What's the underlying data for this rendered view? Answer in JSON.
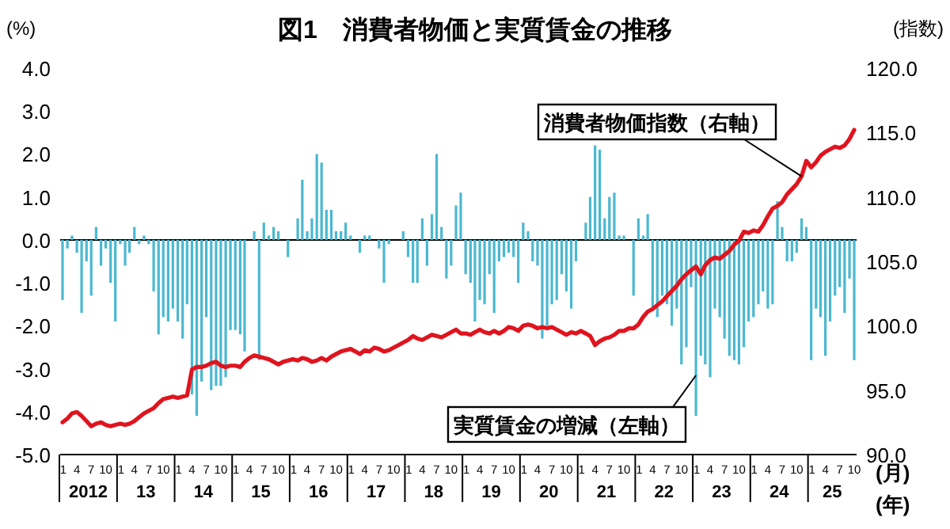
{
  "chart_data": {
    "type": "bar",
    "title": "図1　消費者物価と実質賃金の推移",
    "ylabel": "(%)",
    "y2label": "(指数)",
    "xlabel": "(月)",
    "x": [
      "2012-01",
      "2012-02",
      "2012-03",
      "2012-04",
      "2012-05",
      "2012-06",
      "2012-07",
      "2012-08",
      "2012-09",
      "2012-10",
      "2012-11",
      "2012-12",
      "2013-01",
      "2013-02",
      "2013-03",
      "2013-04",
      "2013-05",
      "2013-06",
      "2013-07",
      "2013-08",
      "2013-09",
      "2013-10",
      "2013-11",
      "2013-12",
      "2014-01",
      "2014-02",
      "2014-03",
      "2014-04",
      "2014-05",
      "2014-06",
      "2014-07",
      "2014-08",
      "2014-09",
      "2014-10",
      "2014-11",
      "2014-12",
      "2015-01",
      "2015-02",
      "2015-03",
      "2015-04",
      "2015-05",
      "2015-06",
      "2015-07",
      "2015-08",
      "2015-09",
      "2015-10",
      "2015-11",
      "2015-12",
      "2016-01",
      "2016-02",
      "2016-03",
      "2016-04",
      "2016-05",
      "2016-06",
      "2016-07",
      "2016-08",
      "2016-09",
      "2016-10",
      "2016-11",
      "2016-12",
      "2017-01",
      "2017-02",
      "2017-03",
      "2017-04",
      "2017-05",
      "2017-06",
      "2017-07",
      "2017-08",
      "2017-09",
      "2017-10",
      "2017-11",
      "2017-12",
      "2018-01",
      "2018-02",
      "2018-03",
      "2018-04",
      "2018-05",
      "2018-06",
      "2018-07",
      "2018-08",
      "2018-09",
      "2018-10",
      "2018-11",
      "2018-12",
      "2019-01",
      "2019-02",
      "2019-03",
      "2019-04",
      "2019-05",
      "2019-06",
      "2019-07",
      "2019-08",
      "2019-09",
      "2019-10",
      "2019-11",
      "2019-12",
      "2020-01",
      "2020-02",
      "2020-03",
      "2020-04",
      "2020-05",
      "2020-06",
      "2020-07",
      "2020-08",
      "2020-09",
      "2020-10",
      "2020-11",
      "2020-12",
      "2021-01",
      "2021-02",
      "2021-03",
      "2021-04",
      "2021-05",
      "2021-06",
      "2021-07",
      "2021-08",
      "2021-09",
      "2021-10",
      "2021-11",
      "2021-12",
      "2022-01",
      "2022-02",
      "2022-03",
      "2022-04",
      "2022-05",
      "2022-06",
      "2022-07",
      "2022-08",
      "2022-09",
      "2022-10",
      "2022-11",
      "2022-12",
      "2023-01",
      "2023-02",
      "2023-03",
      "2023-04",
      "2023-05",
      "2023-06",
      "2023-07",
      "2023-08",
      "2023-09",
      "2023-10",
      "2023-11",
      "2023-12",
      "2024-01",
      "2024-02",
      "2024-03",
      "2024-04",
      "2024-05",
      "2024-06",
      "2024-07",
      "2024-08",
      "2024-09",
      "2024-10",
      "2024-11",
      "2024-12",
      "2025-01",
      "2025-02",
      "2025-03",
      "2025-04",
      "2025-05",
      "2025-06",
      "2025-07",
      "2025-08",
      "2025-09",
      "2025-10"
    ],
    "xlim": [
      "2011-12-17",
      "2025-10-16"
    ],
    "xticks": [
      {
        "value": "2012-01",
        "label": "1"
      },
      {
        "value": "2012-04",
        "label": "4"
      },
      {
        "value": "2012-07",
        "label": "7"
      },
      {
        "value": "2012-10",
        "label": "10"
      },
      {
        "value": "2013-01",
        "label": "1"
      },
      {
        "value": "2013-04",
        "label": "4"
      },
      {
        "value": "2013-07",
        "label": "7"
      },
      {
        "value": "2013-10",
        "label": "10"
      },
      {
        "value": "2014-01",
        "label": "1"
      },
      {
        "value": "2014-04",
        "label": "4"
      },
      {
        "value": "2014-07",
        "label": "7"
      },
      {
        "value": "2014-10",
        "label": "10"
      },
      {
        "value": "2015-01",
        "label": "1"
      },
      {
        "value": "2015-04",
        "label": "4"
      },
      {
        "value": "2015-07",
        "label": "7"
      },
      {
        "value": "2015-10",
        "label": "10"
      },
      {
        "value": "2016-01",
        "label": "1"
      },
      {
        "value": "2016-04",
        "label": "4"
      },
      {
        "value": "2016-07",
        "label": "7"
      },
      {
        "value": "2016-10",
        "label": "10"
      },
      {
        "value": "2017-01",
        "label": "1"
      },
      {
        "value": "2017-04",
        "label": "4"
      },
      {
        "value": "2017-07",
        "label": "7"
      },
      {
        "value": "2017-10",
        "label": "10"
      },
      {
        "value": "2018-01",
        "label": "1"
      },
      {
        "value": "2018-04",
        "label": "4"
      },
      {
        "value": "2018-07",
        "label": "7"
      },
      {
        "value": "2018-10",
        "label": "10"
      },
      {
        "value": "2019-01",
        "label": "1"
      },
      {
        "value": "2019-04",
        "label": "4"
      },
      {
        "value": "2019-07",
        "label": "7"
      },
      {
        "value": "2019-10",
        "label": "10"
      },
      {
        "value": "2020-01",
        "label": "1"
      },
      {
        "value": "2020-04",
        "label": "4"
      },
      {
        "value": "2020-07",
        "label": "7"
      },
      {
        "value": "2020-10",
        "label": "10"
      },
      {
        "value": "2021-01",
        "label": "1"
      },
      {
        "value": "2021-04",
        "label": "4"
      },
      {
        "value": "2021-07",
        "label": "7"
      },
      {
        "value": "2021-10",
        "label": "10"
      },
      {
        "value": "2022-01",
        "label": "1"
      },
      {
        "value": "2022-04",
        "label": "4"
      },
      {
        "value": "2022-07",
        "label": "7"
      },
      {
        "value": "2022-10",
        "label": "10"
      },
      {
        "value": "2023-01",
        "label": "1"
      },
      {
        "value": "2023-04",
        "label": "4"
      },
      {
        "value": "2023-07",
        "label": "7"
      },
      {
        "value": "2023-10",
        "label": "10"
      },
      {
        "value": "2024-01",
        "label": "1"
      },
      {
        "value": "2024-04",
        "label": "4"
      },
      {
        "value": "2024-07",
        "label": "7"
      },
      {
        "value": "2024-10",
        "label": "10"
      },
      {
        "value": "2025-01",
        "label": "1"
      },
      {
        "value": "2025-04",
        "label": "4"
      },
      {
        "value": "2025-07",
        "label": "7"
      },
      {
        "value": "2025-10",
        "label": "10"
      }
    ],
    "ylim": [
      -5,
      4
    ],
    "yticks": [
      {
        "value": 4,
        "label": "4.0"
      },
      {
        "value": 3,
        "label": "3.0"
      },
      {
        "value": 2,
        "label": "2.0"
      },
      {
        "value": 1,
        "label": "1.0"
      },
      {
        "value": 0,
        "label": "0.0"
      },
      {
        "value": -1,
        "label": "-1.0"
      },
      {
        "value": -2,
        "label": "-2.0"
      },
      {
        "value": -3,
        "label": "-3.0"
      },
      {
        "value": -4,
        "label": "-4.0"
      },
      {
        "value": -5,
        "label": "-5.0"
      }
    ],
    "y2lim": [
      90,
      120
    ],
    "y2ticks": [
      {
        "value": 120,
        "label": "120.0"
      },
      {
        "value": 115,
        "label": "115.0"
      },
      {
        "value": 110,
        "label": "110.0"
      },
      {
        "value": 105,
        "label": "105.0"
      },
      {
        "value": 100,
        "label": "100.0"
      },
      {
        "value": 95,
        "label": "95.0"
      },
      {
        "value": 90,
        "label": "90.0"
      }
    ],
    "ref_lines": [
      {
        "axis": "y",
        "value": 0,
        "color": "#000000"
      }
    ],
    "annotations": [
      "2012",
      "13",
      "14",
      "15",
      "16",
      "17",
      "18",
      "19",
      "20",
      "21",
      "22",
      "23",
      "24",
      "25",
      "(年)"
    ],
    "series": [
      {
        "name": "実質賃金の増減（左軸）",
        "color": "#4ab8d0",
        "values": [
          -1.4,
          -0.2,
          0.1,
          -0.3,
          -1.7,
          -0.5,
          -1.3,
          0.3,
          -0.6,
          -0.2,
          -1.0,
          -1.9,
          -0.1,
          -0.6,
          -0.3,
          0.3,
          -0.1,
          0.1,
          -0.1,
          -1.2,
          -2.2,
          -1.8,
          -1.9,
          -1.6,
          -1.9,
          -2.3,
          -1.5,
          -3.6,
          -4.1,
          -3.3,
          -1.8,
          -3.5,
          -3.4,
          -3.4,
          -3.2,
          -2.1,
          -2.1,
          -2.2,
          -2.6,
          0.0,
          0.2,
          -2.8,
          0.4,
          0.1,
          0.3,
          0.2,
          0.0,
          -0.4,
          0.0,
          0.5,
          1.4,
          0.2,
          0.5,
          2.0,
          1.8,
          0.7,
          0.7,
          0.2,
          0.2,
          0.4,
          0.1,
          0.0,
          -0.3,
          0.1,
          0.1,
          0.0,
          -0.2,
          -1.0,
          -0.1,
          0.0,
          0.0,
          0.2,
          -0.4,
          -1.0,
          -1.0,
          0.5,
          -0.6,
          0.6,
          2.0,
          0.3,
          -0.9,
          -0.6,
          0.8,
          1.1,
          -0.8,
          -1.0,
          -1.9,
          -1.4,
          -1.5,
          -0.8,
          -1.7,
          -0.5,
          -0.4,
          -0.3,
          -0.4,
          -1.0,
          0.4,
          0.2,
          -0.5,
          -0.6,
          -2.3,
          -2.0,
          -1.5,
          -1.4,
          -0.8,
          -1.2,
          -1.6,
          -0.5,
          0.0,
          0.4,
          1.0,
          2.2,
          2.1,
          0.5,
          1.0,
          1.1,
          0.1,
          0.1,
          0.0,
          -1.3,
          0.5,
          0.1,
          0.6,
          -1.6,
          -1.8,
          -1.3,
          -1.5,
          -2.0,
          -1.6,
          -2.9,
          -2.5,
          -1.1,
          -4.1,
          -2.7,
          -2.9,
          -3.2,
          -1.6,
          -1.8,
          -2.3,
          -2.7,
          -2.8,
          -2.9,
          -2.5,
          -1.9,
          -1.8,
          -1.5,
          -1.2,
          -1.6,
          -1.5,
          0.9,
          0.3,
          -0.5,
          -0.5,
          -0.3,
          0.5,
          0.3,
          -2.8,
          -1.6,
          -1.8,
          -2.7,
          -1.9,
          -1.3,
          -1.1,
          -1.7,
          -0.9,
          -2.8
        ]
      },
      {
        "name": "消費者物価指数（右軸）",
        "type": "line",
        "axis": "y2",
        "color": "#e0141e",
        "line_style": "solid",
        "values": [
          92.5,
          92.8,
          93.2,
          93.3,
          93.0,
          92.6,
          92.2,
          92.4,
          92.5,
          92.3,
          92.2,
          92.3,
          92.4,
          92.3,
          92.4,
          92.6,
          92.9,
          93.2,
          93.4,
          93.6,
          94.0,
          94.3,
          94.4,
          94.5,
          94.4,
          94.5,
          94.6,
          96.6,
          96.8,
          96.8,
          96.9,
          97.1,
          97.2,
          96.9,
          96.8,
          96.9,
          96.9,
          96.8,
          97.2,
          97.5,
          97.7,
          97.6,
          97.5,
          97.4,
          97.2,
          97.0,
          97.2,
          97.3,
          97.4,
          97.3,
          97.5,
          97.4,
          97.2,
          97.3,
          97.5,
          97.3,
          97.6,
          97.8,
          98.0,
          98.1,
          98.2,
          98.0,
          97.8,
          98.1,
          98.0,
          98.3,
          98.2,
          98.0,
          98.1,
          98.3,
          98.5,
          98.7,
          98.9,
          99.2,
          99.0,
          98.9,
          99.1,
          99.3,
          99.2,
          99.1,
          99.3,
          99.5,
          99.7,
          99.4,
          99.4,
          99.3,
          99.5,
          99.7,
          99.5,
          99.4,
          99.6,
          99.4,
          99.6,
          99.9,
          99.8,
          99.6,
          100.0,
          100.1,
          100.0,
          99.8,
          99.9,
          99.8,
          99.9,
          99.7,
          99.5,
          99.3,
          99.5,
          99.4,
          99.6,
          99.4,
          99.2,
          98.5,
          98.8,
          99.0,
          99.1,
          99.3,
          99.6,
          99.6,
          99.8,
          99.8,
          100.1,
          100.7,
          101.1,
          101.3,
          101.6,
          101.9,
          102.3,
          102.7,
          103.1,
          103.6,
          104.0,
          104.3,
          104.6,
          104.0,
          104.7,
          105.1,
          105.3,
          105.2,
          105.5,
          105.8,
          106.3,
          106.6,
          107.3,
          107.2,
          107.4,
          107.3,
          107.8,
          108.5,
          109.1,
          109.3,
          109.6,
          110.2,
          110.6,
          111.0,
          111.6,
          112.8,
          112.3,
          112.7,
          113.2,
          113.5,
          113.7,
          113.9,
          113.8,
          114.0,
          114.5,
          115.2
        ]
      }
    ]
  }
}
